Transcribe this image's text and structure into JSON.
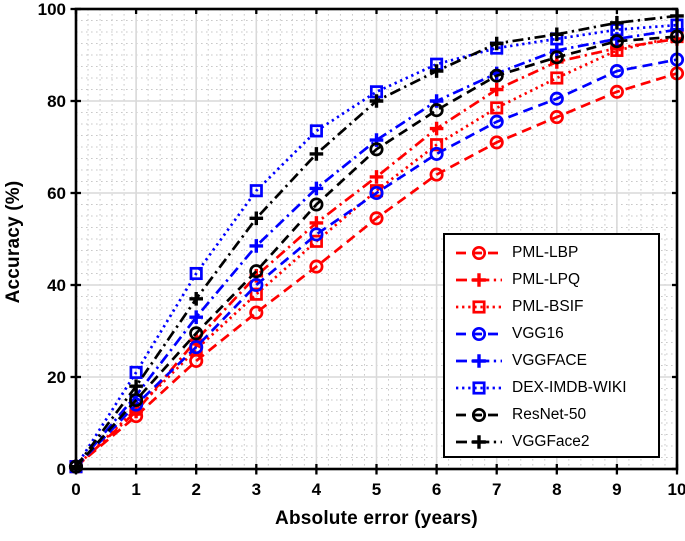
{
  "chart_data": {
    "type": "line",
    "title": "",
    "xlabel": "Absolute error (years)",
    "ylabel": "Accuracy (%)",
    "xlim": [
      0,
      10
    ],
    "ylim": [
      0,
      100
    ],
    "xticks": [
      0,
      1,
      2,
      3,
      4,
      5,
      6,
      7,
      8,
      9,
      10
    ],
    "yticks": [
      0,
      20,
      40,
      60,
      80,
      100
    ],
    "grid": {
      "major": true,
      "minor_dotted": true,
      "major_color": "#d9d9d9",
      "minor_color": "#c9c9c9"
    },
    "legend_position": "inside-right-lower",
    "colors": {
      "red": "#ff0000",
      "blue": "#0000ff",
      "black": "#000000"
    },
    "x": [
      0,
      1,
      2,
      3,
      4,
      5,
      6,
      7,
      8,
      9,
      10
    ],
    "series": [
      {
        "name": "PML-LBP",
        "color": "#ff0000",
        "linestyle": "dashed",
        "marker": "circle",
        "values": [
          0.5,
          11.5,
          23.5,
          34,
          44,
          54.5,
          64,
          71,
          76.5,
          82,
          86
        ]
      },
      {
        "name": "PML-LPQ",
        "color": "#ff0000",
        "linestyle": "dashdot",
        "marker": "plus",
        "values": [
          0.5,
          12.5,
          28,
          42,
          53.5,
          63.5,
          74,
          82.5,
          88.5,
          91.5,
          93.5
        ]
      },
      {
        "name": "PML-BSIF",
        "color": "#ff0000",
        "linestyle": "dotted",
        "marker": "square",
        "values": [
          0.5,
          13,
          26,
          38,
          49.5,
          60.5,
          70.5,
          78.5,
          85,
          91,
          94
        ]
      },
      {
        "name": "VGG16",
        "color": "#0000ff",
        "linestyle": "dashed",
        "marker": "circle",
        "values": [
          0.5,
          14,
          26.5,
          40,
          51,
          60,
          68.5,
          75.5,
          80.5,
          86.5,
          89
        ]
      },
      {
        "name": "VGGFACE",
        "color": "#0000ff",
        "linestyle": "dashdot",
        "marker": "plus",
        "values": [
          0.5,
          16,
          33,
          48.5,
          61,
          71.5,
          80,
          86,
          91,
          93.5,
          95.5
        ]
      },
      {
        "name": "DEX-IMDB-WIKI",
        "color": "#0000ff",
        "linestyle": "dotted",
        "marker": "square",
        "values": [
          0.5,
          21,
          42.5,
          60.5,
          73.5,
          82,
          88,
          91.5,
          93.5,
          95.5,
          96.5
        ]
      },
      {
        "name": "ResNet-50",
        "color": "#000000",
        "linestyle": "dashed",
        "marker": "circle",
        "values": [
          0.5,
          15,
          29.5,
          43,
          57.5,
          69.5,
          78,
          85.5,
          89.5,
          93,
          94
        ]
      },
      {
        "name": "VGGFace2",
        "color": "#000000",
        "linestyle": "dashdot",
        "marker": "plus",
        "values": [
          0.5,
          18,
          37,
          54.5,
          68.5,
          80,
          86.5,
          92.5,
          94.5,
          97,
          98.5
        ]
      }
    ]
  }
}
